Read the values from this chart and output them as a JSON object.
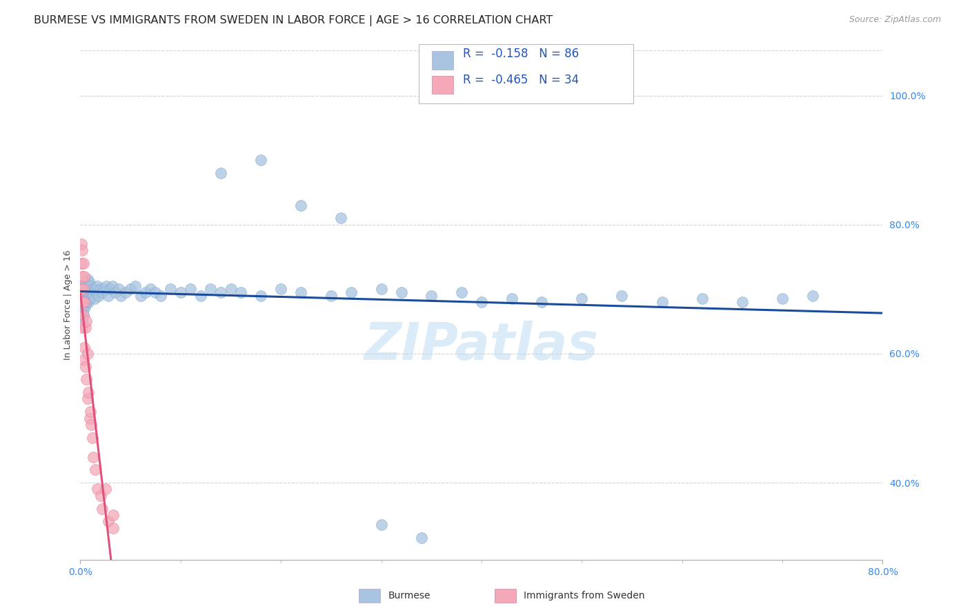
{
  "title": "BURMESE VS IMMIGRANTS FROM SWEDEN IN LABOR FORCE | AGE > 16 CORRELATION CHART",
  "source": "Source: ZipAtlas.com",
  "ylabel": "In Labor Force | Age > 16",
  "xlim": [
    0.0,
    0.8
  ],
  "ylim": [
    0.28,
    1.07
  ],
  "xticks": [
    0.0,
    0.8
  ],
  "xticklabels": [
    "0.0%",
    "80.0%"
  ],
  "yticks_right": [
    0.4,
    0.6,
    0.8,
    1.0
  ],
  "ytick_right_labels": [
    "40.0%",
    "60.0%",
    "80.0%",
    "100.0%"
  ],
  "grid_color": "#c8c8c8",
  "background_color": "#ffffff",
  "watermark": "ZIPatlas",
  "burmese_color": "#a8c4e0",
  "burmese_edge_color": "#7aaace",
  "sweden_color": "#f4a8b8",
  "sweden_edge_color": "#e87898",
  "burmese_line_color": "#1a4a9a",
  "sweden_line_color": "#e0507a",
  "burmese_R": -0.158,
  "burmese_N": 86,
  "sweden_R": -0.465,
  "sweden_N": 34,
  "burmese_x": [
    0.001,
    0.001,
    0.002,
    0.002,
    0.002,
    0.002,
    0.003,
    0.003,
    0.003,
    0.003,
    0.004,
    0.004,
    0.004,
    0.005,
    0.005,
    0.005,
    0.006,
    0.006,
    0.007,
    0.007,
    0.007,
    0.008,
    0.008,
    0.009,
    0.009,
    0.01,
    0.01,
    0.011,
    0.012,
    0.013,
    0.014,
    0.015,
    0.016,
    0.017,
    0.018,
    0.02,
    0.022,
    0.024,
    0.026,
    0.028,
    0.03,
    0.032,
    0.035,
    0.038,
    0.04,
    0.045,
    0.05,
    0.055,
    0.06,
    0.065,
    0.07,
    0.075,
    0.08,
    0.09,
    0.1,
    0.11,
    0.12,
    0.13,
    0.14,
    0.15,
    0.16,
    0.18,
    0.2,
    0.22,
    0.25,
    0.27,
    0.3,
    0.32,
    0.35,
    0.38,
    0.4,
    0.43,
    0.46,
    0.5,
    0.54,
    0.58,
    0.62,
    0.66,
    0.7,
    0.73,
    0.14,
    0.18,
    0.22,
    0.26,
    0.3,
    0.34
  ],
  "burmese_y": [
    0.68,
    0.66,
    0.69,
    0.67,
    0.7,
    0.65,
    0.68,
    0.695,
    0.705,
    0.66,
    0.685,
    0.7,
    0.67,
    0.69,
    0.675,
    0.71,
    0.68,
    0.7,
    0.685,
    0.695,
    0.715,
    0.68,
    0.7,
    0.69,
    0.71,
    0.685,
    0.705,
    0.695,
    0.7,
    0.69,
    0.685,
    0.7,
    0.695,
    0.705,
    0.69,
    0.7,
    0.695,
    0.7,
    0.705,
    0.69,
    0.7,
    0.705,
    0.695,
    0.7,
    0.69,
    0.695,
    0.7,
    0.705,
    0.69,
    0.695,
    0.7,
    0.695,
    0.69,
    0.7,
    0.695,
    0.7,
    0.69,
    0.7,
    0.695,
    0.7,
    0.695,
    0.69,
    0.7,
    0.695,
    0.69,
    0.695,
    0.7,
    0.695,
    0.69,
    0.695,
    0.68,
    0.685,
    0.68,
    0.685,
    0.69,
    0.68,
    0.685,
    0.68,
    0.685,
    0.69,
    0.88,
    0.9,
    0.83,
    0.81,
    0.335,
    0.315
  ],
  "sweden_x": [
    0.001,
    0.001,
    0.001,
    0.002,
    0.002,
    0.002,
    0.002,
    0.003,
    0.003,
    0.003,
    0.003,
    0.004,
    0.004,
    0.004,
    0.005,
    0.005,
    0.006,
    0.006,
    0.007,
    0.007,
    0.008,
    0.009,
    0.01,
    0.011,
    0.012,
    0.013,
    0.015,
    0.017,
    0.02,
    0.022,
    0.025,
    0.028,
    0.033,
    0.033
  ],
  "sweden_y": [
    0.77,
    0.74,
    0.7,
    0.76,
    0.72,
    0.68,
    0.64,
    0.74,
    0.7,
    0.66,
    0.59,
    0.72,
    0.68,
    0.61,
    0.64,
    0.58,
    0.65,
    0.56,
    0.6,
    0.53,
    0.54,
    0.5,
    0.51,
    0.49,
    0.47,
    0.44,
    0.42,
    0.39,
    0.38,
    0.36,
    0.39,
    0.34,
    0.35,
    0.33
  ],
  "title_fontsize": 11.5,
  "source_fontsize": 9,
  "axis_label_fontsize": 9,
  "tick_fontsize": 10,
  "legend_fontsize": 12,
  "marker_size": 130
}
